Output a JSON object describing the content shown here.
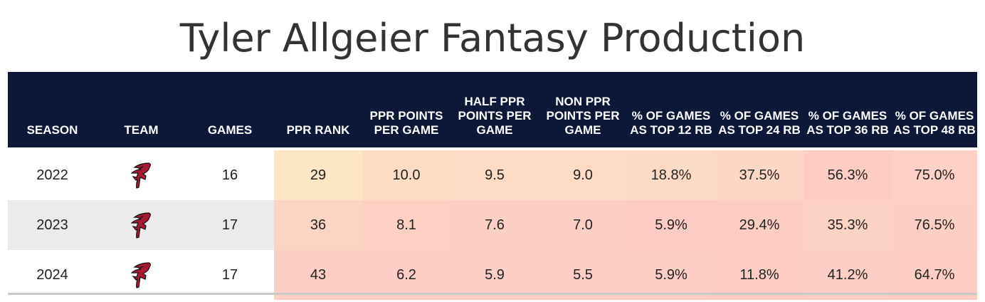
{
  "title": "Tyler Allgeier Fantasy Production",
  "columns": {
    "season": "SEASON",
    "team": "TEAM",
    "games": "GAMES",
    "ppr_rank": "PPR RANK",
    "ppr_ppg": "PPR POINTS PER GAME",
    "half_ppg": "HALF PPR POINTS PER GAME",
    "non_ppg": "NON PPR POINTS PER GAME",
    "top12": "% OF GAMES AS TOP 12 RB",
    "top24": "% OF GAMES AS TOP 24 RB",
    "top36": "% OF GAMES AS TOP 36 RB",
    "top48": "% OF GAMES AS TOP 48 RB"
  },
  "team_logo_icon": "atlanta-falcons-logo-icon",
  "colors": {
    "header_bg": "#0d1838",
    "row_alt_bg": "#ebebeb"
  },
  "rows": [
    {
      "season": "2022",
      "games": "16",
      "ppr_rank": "29",
      "ppr_ppg": "10.0",
      "half_ppg": "9.5",
      "non_ppg": "9.0",
      "top12": "18.8%",
      "top24": "37.5%",
      "top36": "56.3%",
      "top48": "75.0%",
      "cell_colors": [
        "#fde6c6",
        "#fddcc4",
        "#fddbc5",
        "#fddbc5",
        "#fddac6",
        "#fdd6c5",
        "#fdcdc4",
        "#fdd1c6"
      ]
    },
    {
      "season": "2023",
      "games": "17",
      "ppr_rank": "36",
      "ppr_ppg": "8.1",
      "half_ppg": "7.6",
      "non_ppg": "7.0",
      "top12": "5.9%",
      "top24": "29.4%",
      "top36": "35.3%",
      "top48": "76.5%",
      "cell_colors": [
        "#fcd4c4",
        "#fcd1c4",
        "#fccfc4",
        "#fccfc4",
        "#fdcbc4",
        "#fdcdc4",
        "#fcd2c4",
        "#fdcfc4"
      ]
    },
    {
      "season": "2024",
      "games": "17",
      "ppr_rank": "43",
      "ppr_ppg": "6.2",
      "half_ppg": "5.9",
      "non_ppg": "5.5",
      "top12": "5.9%",
      "top24": "11.8%",
      "top36": "41.2%",
      "top48": "64.7%",
      "cell_colors": [
        "#fdcfc4",
        "#fdcec5",
        "#fdcec5",
        "#fdcec5",
        "#fdcec5",
        "#fdcdc4",
        "#fdcec5",
        "#fdcdc4"
      ]
    }
  ]
}
